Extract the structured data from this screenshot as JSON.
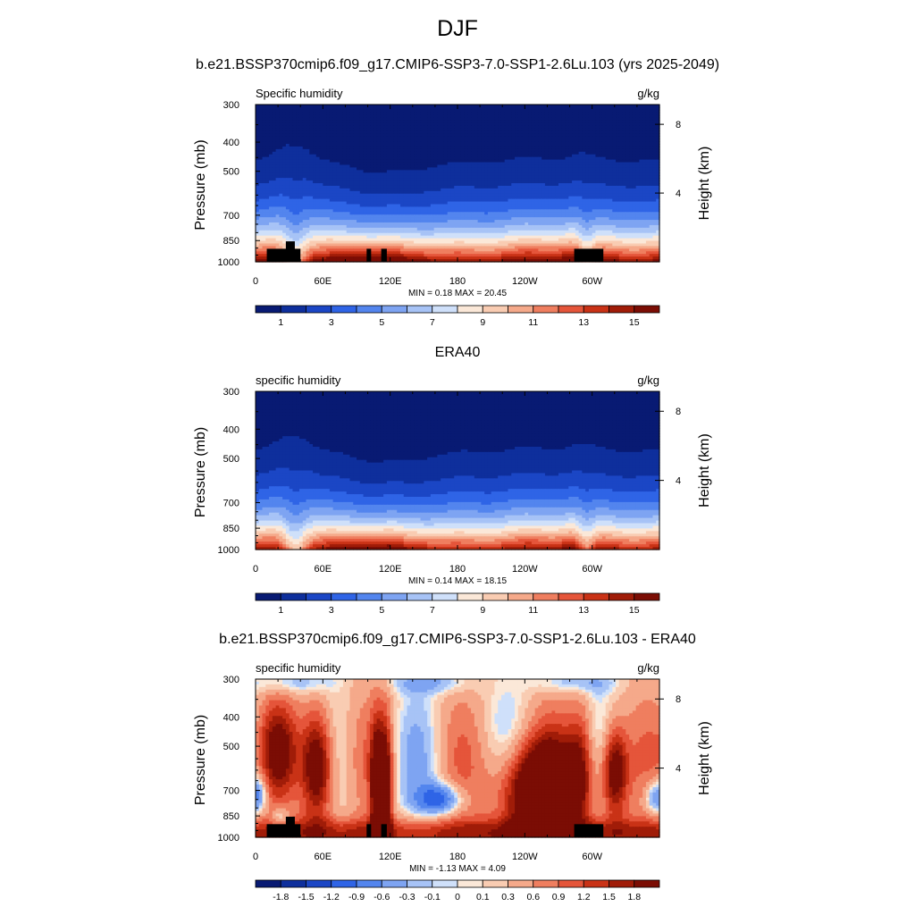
{
  "header": {
    "title": "DJF",
    "run_title": "b.e21.BSSP370cmip6.f09_g17.CMIP6-SSP3-7.0-SSP1-2.6Lu.103 (yrs 2025-2049)"
  },
  "colors": {
    "seq_palette": [
      "#081a73",
      "#0e2f9c",
      "#1b46c5",
      "#2f64e6",
      "#5385ee",
      "#7ea4f2",
      "#a7c3f6",
      "#cfe0fa",
      "#fbe8d8",
      "#f9ccb2",
      "#f5a98a",
      "#ef7e5f",
      "#e5553a",
      "#c93216",
      "#a01c08",
      "#7b0d04"
    ],
    "div_palette": [
      "#081a73",
      "#0e2f9c",
      "#1b46c5",
      "#2f64e6",
      "#5385ee",
      "#7ea4f2",
      "#a7c3f6",
      "#cfe0fa",
      "#fbe8d8",
      "#f9ccb2",
      "#f5a98a",
      "#ef7e5f",
      "#e5553a",
      "#c93216",
      "#a01c08",
      "#7b0d04"
    ],
    "terrain": "#000000"
  },
  "chart_data": [
    {
      "type": "contour",
      "title": "",
      "left_label": "Specific humidity",
      "right_label": "g/kg",
      "ylabel": "Pressure (mb)",
      "y2label": "Height (km)",
      "x_ticks": [
        "0",
        "60E",
        "120E",
        "180",
        "120W",
        "60W"
      ],
      "x_tick_values": [
        0,
        60,
        120,
        180,
        240,
        300
      ],
      "xlim": [
        0,
        360
      ],
      "y_ticks": [
        300,
        400,
        500,
        700,
        850,
        1000
      ],
      "ylim": [
        1000,
        300
      ],
      "y2_ticks": [
        8,
        4
      ],
      "stats": "MIN =   0.18  MAX =  20.45",
      "colorbar_labels": [
        "1",
        "3",
        "5",
        "7",
        "9",
        "11",
        "13",
        "15"
      ],
      "terrain_masked": true
    },
    {
      "type": "contour",
      "title": "ERA40",
      "left_label": "specific humidity",
      "right_label": "g/kg",
      "ylabel": "Pressure (mb)",
      "y2label": "Height (km)",
      "x_ticks": [
        "0",
        "60E",
        "120E",
        "180",
        "120W",
        "60W"
      ],
      "x_tick_values": [
        0,
        60,
        120,
        180,
        240,
        300
      ],
      "xlim": [
        0,
        360
      ],
      "y_ticks": [
        300,
        400,
        500,
        700,
        850,
        1000
      ],
      "ylim": [
        1000,
        300
      ],
      "y2_ticks": [
        8,
        4
      ],
      "stats": "MIN =   0.14  MAX =  18.15",
      "colorbar_labels": [
        "1",
        "3",
        "5",
        "7",
        "9",
        "11",
        "13",
        "15"
      ],
      "terrain_masked": false
    },
    {
      "type": "contour",
      "title": "b.e21.BSSP370cmip6.f09_g17.CMIP6-SSP3-7.0-SSP1-2.6Lu.103 - ERA40",
      "left_label": "specific humidity",
      "right_label": "g/kg",
      "ylabel": "Pressure (mb)",
      "y2label": "Height (km)",
      "x_ticks": [
        "0",
        "60E",
        "120E",
        "180",
        "120W",
        "60W"
      ],
      "x_tick_values": [
        0,
        60,
        120,
        180,
        240,
        300
      ],
      "xlim": [
        0,
        360
      ],
      "y_ticks": [
        300,
        400,
        500,
        700,
        850,
        1000
      ],
      "ylim": [
        1000,
        300
      ],
      "y2_ticks": [
        8,
        4
      ],
      "stats": "MIN =  -1.13  MAX =   4.09",
      "colorbar_labels": [
        "-1.8",
        "-1.5",
        "-1.2",
        "-0.9",
        "-0.6",
        "-0.3",
        "-0.1",
        "0",
        "0.1",
        "0.3",
        "0.6",
        "0.9",
        "1.2",
        "1.5",
        "1.8"
      ],
      "terrain_masked": true
    }
  ]
}
